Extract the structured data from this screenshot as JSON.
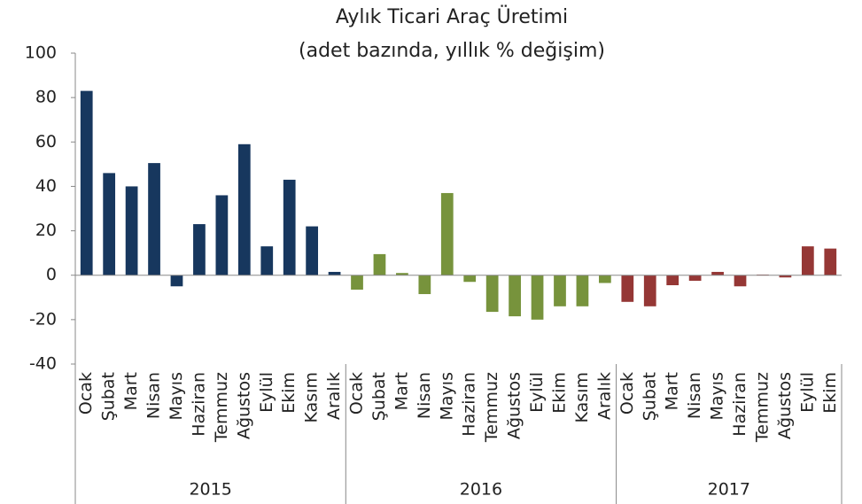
{
  "chart_data": {
    "type": "bar",
    "title": "Aylık Ticari Araç Üretimi",
    "subtitle": "(adet bazında, yıllık % değişim)",
    "ylim": [
      -40,
      100
    ],
    "yticks": [
      -40,
      -20,
      0,
      20,
      40,
      60,
      80,
      100
    ],
    "groups": [
      {
        "name": "2015",
        "color": "#17375e",
        "categories": [
          "Ocak",
          "Şubat",
          "Mart",
          "Nisan",
          "Mayıs",
          "Haziran",
          "Temmuz",
          "Ağustos",
          "Eylül",
          "Ekim",
          "Kasım",
          "Aralık"
        ],
        "values": [
          83,
          46,
          40,
          50.5,
          -5,
          23,
          36,
          59,
          13,
          43,
          22,
          1.5
        ]
      },
      {
        "name": "2016",
        "color": "#77933c",
        "categories": [
          "Ocak",
          "Şubat",
          "Mart",
          "Nisan",
          "Mayıs",
          "Haziran",
          "Temmuz",
          "Ağustos",
          "Eylül",
          "Ekim",
          "Kasım",
          "Aralık"
        ],
        "values": [
          -6.5,
          9.5,
          1,
          -8.5,
          37,
          -3,
          -16.5,
          -18.5,
          -20,
          -14,
          -14,
          -3.5
        ]
      },
      {
        "name": "2017",
        "color": "#953735",
        "categories": [
          "Ocak",
          "Şubat",
          "Mart",
          "Nisan",
          "Mayıs",
          "Haziran",
          "Temmuz",
          "Ağustos",
          "Eylül",
          "Ekim"
        ],
        "values": [
          -12,
          -14,
          -4.5,
          -2.5,
          1.5,
          -5,
          0.3,
          -1,
          13,
          12
        ]
      }
    ]
  }
}
